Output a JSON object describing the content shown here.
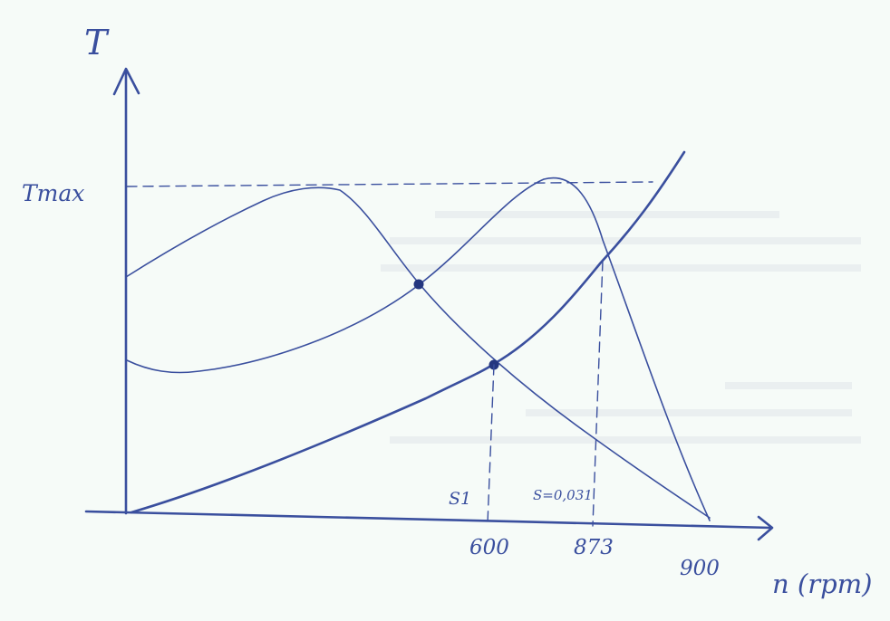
{
  "labels": {
    "y_axis": "T",
    "t_max": "Tmax",
    "x_axis": "n (rpm)",
    "tick_600": "600",
    "tick_873": "873",
    "tick_900": "900",
    "s1": "S1",
    "s_value": "S=0,031"
  },
  "colors": {
    "ink": "#3a4f9e",
    "paper": "#f6fbf8"
  }
}
